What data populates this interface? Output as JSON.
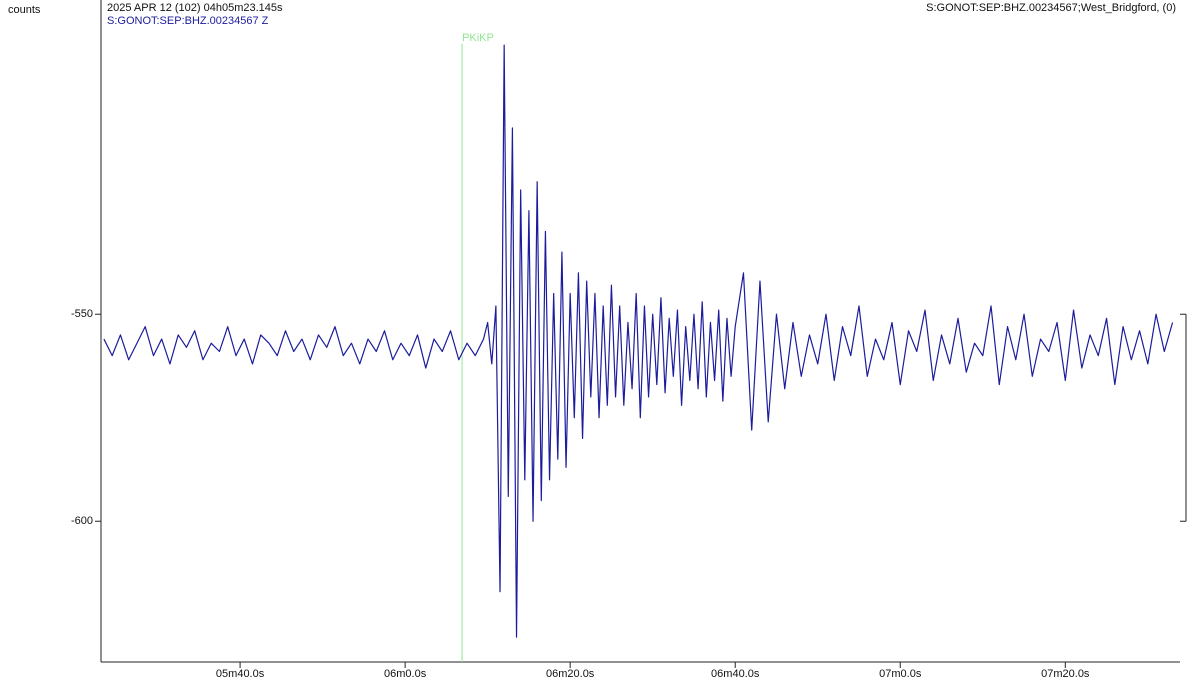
{
  "chart_data": {
    "type": "line",
    "y_label": "counts",
    "header_time": "2025 APR 12 (102)  04h05m23.145s",
    "header_station": "S:GONOT:SEP:BHZ.00234567;West_Bridgford, (0)",
    "xlim": [
      23.145,
      153.9
    ],
    "ylim": [
      -634,
      -477
    ],
    "xticks": [
      {
        "value": 40,
        "label": "05m40.0s"
      },
      {
        "value": 60,
        "label": "06m0.0s"
      },
      {
        "value": 80,
        "label": "06m20.0s"
      },
      {
        "value": 100,
        "label": "06m40.0s"
      },
      {
        "value": 120,
        "label": "07m0.0s"
      },
      {
        "value": 140,
        "label": "07m20.0s"
      }
    ],
    "yticks": [
      -550,
      -600
    ],
    "picks": [
      {
        "label": "PKiKP",
        "x": 66.9,
        "color": "#8fe88f"
      }
    ],
    "x": [
      23.5,
      24.5,
      25.5,
      26.5,
      27.5,
      28.5,
      29.5,
      30.5,
      31.5,
      32.5,
      33.5,
      34.5,
      35.5,
      36.5,
      37.5,
      38.5,
      39.5,
      40.5,
      41.5,
      42.5,
      43.5,
      44.5,
      45.5,
      46.5,
      47.5,
      48.5,
      49.5,
      50.5,
      51.5,
      52.5,
      53.5,
      54.5,
      55.5,
      56.5,
      57.5,
      58.5,
      59.5,
      60.5,
      61.5,
      62.5,
      63.5,
      64.5,
      65.5,
      66.5,
      67.5,
      68.5,
      69.5,
      70,
      70.5,
      71,
      71.5,
      72,
      72.5,
      73,
      73.5,
      74,
      74.5,
      75,
      75.5,
      76,
      76.5,
      77,
      77.5,
      78,
      78.5,
      79,
      79.5,
      80,
      80.5,
      81,
      81.5,
      82,
      82.5,
      83,
      83.5,
      84,
      84.5,
      85,
      85.5,
      86,
      86.5,
      87,
      87.5,
      88,
      88.5,
      89,
      89.5,
      90,
      90.5,
      91,
      91.5,
      92,
      92.5,
      93,
      93.5,
      94,
      94.5,
      95,
      95.5,
      96,
      96.5,
      97,
      97.5,
      98,
      98.5,
      99,
      99.5,
      100,
      101,
      102,
      103,
      104,
      105,
      106,
      107,
      108,
      109,
      110,
      111,
      112,
      113,
      114,
      115,
      116,
      117,
      118,
      119,
      120,
      121,
      122,
      123,
      124,
      125,
      126,
      127,
      128,
      129,
      130,
      131,
      132,
      133,
      134,
      135,
      136,
      137,
      138,
      139,
      140,
      141,
      142,
      143,
      144,
      145,
      146,
      147,
      148,
      149,
      150,
      151,
      152,
      153
    ],
    "series": [
      {
        "name": "S:GONOT:SEP:BHZ.00234567 Z",
        "color": "#1c1c9c",
        "values": [
          -556,
          -560,
          -555,
          -561,
          -557,
          -553,
          -560,
          -556,
          -562,
          -555,
          -558,
          -554,
          -561,
          -557,
          -559,
          -553,
          -560,
          -556,
          -562,
          -555,
          -557,
          -560,
          -554,
          -559,
          -556,
          -561,
          -555,
          -558,
          -553,
          -560,
          -557,
          -562,
          -556,
          -559,
          -554,
          -561,
          -557,
          -560,
          -555,
          -563,
          -556,
          -559,
          -554,
          -561,
          -557,
          -560,
          -556,
          -552,
          -562,
          -548,
          -617,
          -485,
          -594,
          -505,
          -628,
          -520,
          -590,
          -525,
          -600,
          -518,
          -595,
          -530,
          -590,
          -545,
          -585,
          -535,
          -587,
          -545,
          -575,
          -540,
          -580,
          -542,
          -570,
          -545,
          -575,
          -548,
          -572,
          -543,
          -570,
          -548,
          -572,
          -552,
          -568,
          -545,
          -575,
          -548,
          -570,
          -550,
          -567,
          -546,
          -569,
          -551,
          -565,
          -549,
          -572,
          -553,
          -566,
          -550,
          -568,
          -547,
          -570,
          -552,
          -566,
          -549,
          -571,
          -551,
          -565,
          -553,
          -540,
          -578,
          -542,
          -576,
          -550,
          -568,
          -552,
          -565,
          -555,
          -562,
          -550,
          -566,
          -553,
          -560,
          -548,
          -565,
          -556,
          -561,
          -552,
          -567,
          -554,
          -559,
          -549,
          -566,
          -555,
          -562,
          -551,
          -564,
          -557,
          -560,
          -548,
          -567,
          -553,
          -561,
          -550,
          -565,
          -556,
          -559,
          -552,
          -566,
          -549,
          -563,
          -555,
          -560,
          -551,
          -567,
          -553,
          -561,
          -554,
          -562,
          -550,
          -559,
          -552
        ]
      }
    ]
  }
}
